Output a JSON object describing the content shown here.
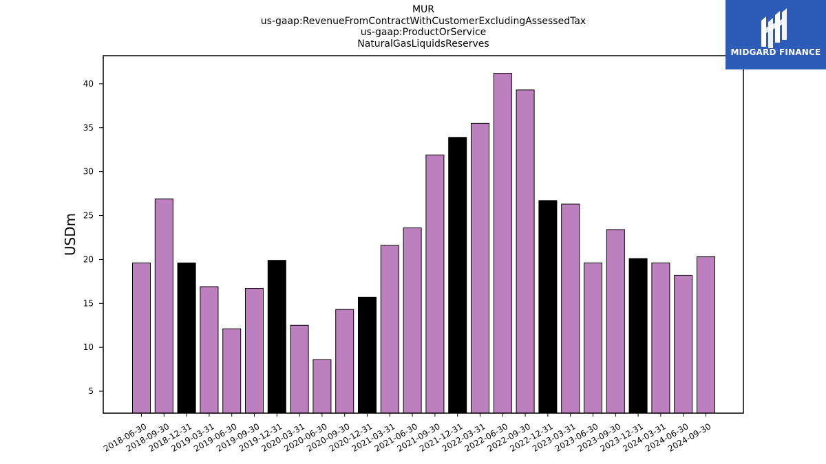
{
  "header": {
    "lines": [
      "MUR",
      "us-gaap:RevenueFromContractWithCustomerExcludingAssessedTax",
      "us-gaap:ProductOrService",
      "NaturalGasLiquidsReserves"
    ]
  },
  "logo": {
    "text": "MIDGARD FINANCE",
    "background": "#2d5bb8"
  },
  "colors": {
    "regular_bar": "#bb80bd",
    "year_end_bar": "#000000"
  },
  "chart_data": {
    "type": "bar",
    "title": "MUR\nus-gaap:RevenueFromContractWithCustomerExcludingAssessedTax\nus-gaap:ProductOrService\nNaturalGasLiquidsReserves",
    "xlabel": "",
    "ylabel": "USDm",
    "ylim": [
      2.5,
      43.2
    ],
    "yticks": [
      5,
      10,
      15,
      20,
      25,
      30,
      35,
      40
    ],
    "grid": false,
    "categories": [
      "2018-06-30",
      "2018-09-30",
      "2018-12-31",
      "2019-03-31",
      "2019-06-30",
      "2019-09-30",
      "2019-12-31",
      "2020-03-31",
      "2020-06-30",
      "2020-09-30",
      "2020-12-31",
      "2021-03-31",
      "2021-06-30",
      "2021-09-30",
      "2021-12-31",
      "2022-03-31",
      "2022-06-30",
      "2022-09-30",
      "2022-12-31",
      "2023-03-31",
      "2023-06-30",
      "2023-09-30",
      "2023-12-31",
      "2024-03-31",
      "2024-06-30",
      "2024-09-30"
    ],
    "values": [
      19.6,
      26.9,
      19.6,
      16.9,
      12.1,
      16.7,
      19.9,
      12.5,
      8.6,
      14.3,
      15.7,
      21.6,
      23.6,
      31.9,
      33.9,
      35.5,
      41.2,
      39.3,
      26.7,
      26.3,
      19.6,
      23.4,
      20.1,
      19.6,
      18.2,
      20.3
    ],
    "highlight": [
      false,
      false,
      true,
      false,
      false,
      false,
      true,
      false,
      false,
      false,
      true,
      false,
      false,
      false,
      true,
      false,
      false,
      false,
      true,
      false,
      false,
      false,
      true,
      false,
      false,
      false
    ]
  }
}
